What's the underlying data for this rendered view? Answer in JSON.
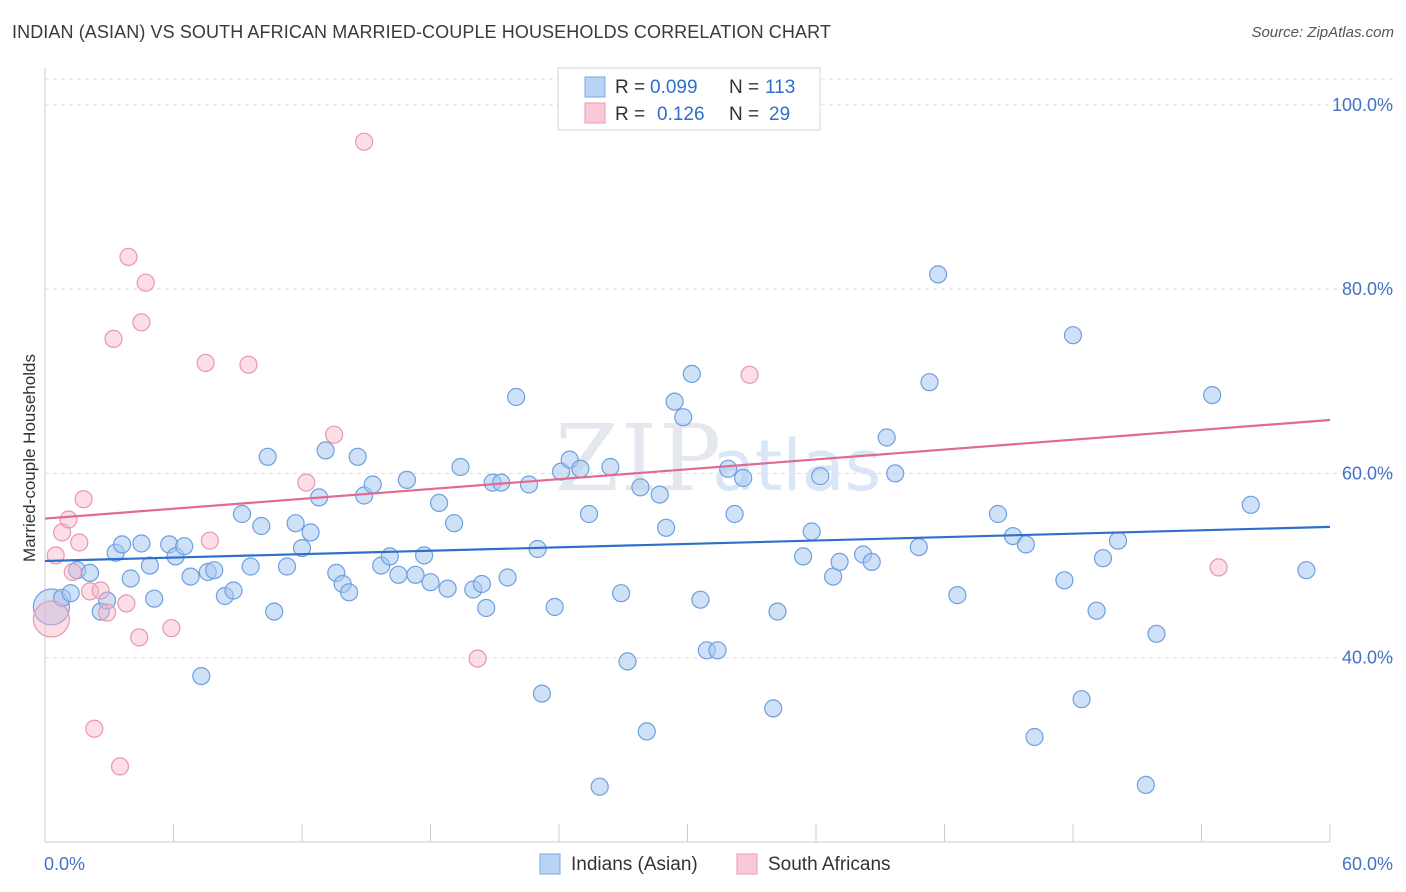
{
  "title": "INDIAN (ASIAN) VS SOUTH AFRICAN MARRIED-COUPLE HOUSEHOLDS CORRELATION CHART",
  "source": "Source: ZipAtlas.com",
  "watermark": {
    "zip": "ZIP",
    "atlas": "atlas"
  },
  "chart_data": {
    "type": "scatter",
    "ylabel": "Married-couple Households",
    "xlim": [
      0,
      60
    ],
    "ylim": [
      20,
      104
    ],
    "x_tick_labels": {
      "min": "0.0%",
      "max": "60.0%"
    },
    "y_ticks": [
      {
        "value": 40,
        "label": "40.0%"
      },
      {
        "value": 60,
        "label": "60.0%"
      },
      {
        "value": 80,
        "label": "80.0%"
      },
      {
        "value": 100,
        "label": "100.0%"
      }
    ],
    "legend": {
      "placement": "top-center",
      "entries": [
        {
          "r_label": "R =",
          "r_value": "0.099",
          "n_label": "N =",
          "n_value": "113"
        },
        {
          "r_label": "R =",
          "r_value": "0.126",
          "n_label": "N =",
          "n_value": "29"
        }
      ]
    },
    "series": [
      {
        "name": "Indians (Asian)",
        "color": "#a8c8f0",
        "line_color": "#2f6fcc",
        "trend": [
          [
            0,
            50.5
          ],
          [
            60,
            54.2
          ]
        ],
        "points": [
          [
            0.3,
            45.5
          ],
          [
            0.8,
            46.5
          ],
          [
            1.2,
            47.0
          ],
          [
            1.5,
            49.5
          ],
          [
            2.1,
            49.2
          ],
          [
            2.6,
            45.0
          ],
          [
            2.9,
            46.2
          ],
          [
            3.3,
            51.4
          ],
          [
            3.6,
            52.3
          ],
          [
            4.0,
            48.6
          ],
          [
            4.5,
            52.4
          ],
          [
            4.9,
            50.0
          ],
          [
            5.1,
            46.4
          ],
          [
            5.8,
            52.3
          ],
          [
            6.1,
            51.0
          ],
          [
            6.5,
            52.1
          ],
          [
            6.8,
            48.8
          ],
          [
            7.3,
            38.0
          ],
          [
            7.6,
            49.3
          ],
          [
            7.9,
            49.5
          ],
          [
            8.4,
            46.7
          ],
          [
            8.8,
            47.3
          ],
          [
            9.2,
            55.6
          ],
          [
            9.6,
            49.9
          ],
          [
            10.1,
            54.3
          ],
          [
            10.4,
            61.8
          ],
          [
            10.7,
            45.0
          ],
          [
            11.3,
            49.9
          ],
          [
            11.7,
            54.6
          ],
          [
            12.0,
            51.9
          ],
          [
            12.4,
            53.6
          ],
          [
            12.8,
            57.4
          ],
          [
            13.1,
            62.5
          ],
          [
            13.6,
            49.2
          ],
          [
            13.9,
            48.0
          ],
          [
            14.2,
            47.1
          ],
          [
            14.6,
            61.8
          ],
          [
            14.9,
            57.6
          ],
          [
            15.3,
            58.8
          ],
          [
            15.7,
            50.0
          ],
          [
            16.1,
            51.0
          ],
          [
            16.5,
            49.0
          ],
          [
            16.9,
            59.3
          ],
          [
            17.3,
            49.0
          ],
          [
            17.7,
            51.1
          ],
          [
            18.0,
            48.2
          ],
          [
            18.4,
            56.8
          ],
          [
            18.8,
            47.5
          ],
          [
            19.1,
            54.6
          ],
          [
            19.4,
            60.7
          ],
          [
            20.0,
            47.4
          ],
          [
            20.4,
            48.0
          ],
          [
            20.6,
            45.4
          ],
          [
            20.9,
            59.0
          ],
          [
            21.3,
            59.0
          ],
          [
            21.6,
            48.7
          ],
          [
            22.0,
            68.3
          ],
          [
            22.6,
            58.8
          ],
          [
            23.0,
            51.8
          ],
          [
            23.2,
            36.1
          ],
          [
            23.8,
            45.5
          ],
          [
            24.1,
            60.2
          ],
          [
            24.5,
            61.5
          ],
          [
            25.0,
            60.5
          ],
          [
            25.4,
            55.6
          ],
          [
            25.9,
            26.0
          ],
          [
            26.4,
            60.7
          ],
          [
            26.9,
            47.0
          ],
          [
            27.2,
            39.6
          ],
          [
            27.8,
            58.5
          ],
          [
            28.1,
            32.0
          ],
          [
            28.7,
            57.7
          ],
          [
            29.0,
            54.1
          ],
          [
            29.4,
            67.8
          ],
          [
            29.8,
            66.1
          ],
          [
            30.2,
            70.8
          ],
          [
            30.6,
            46.3
          ],
          [
            30.9,
            40.8
          ],
          [
            31.4,
            40.8
          ],
          [
            31.9,
            60.5
          ],
          [
            32.2,
            55.6
          ],
          [
            32.6,
            59.5
          ],
          [
            34.0,
            34.5
          ],
          [
            34.2,
            45.0
          ],
          [
            35.4,
            51.0
          ],
          [
            35.8,
            53.7
          ],
          [
            36.2,
            59.7
          ],
          [
            36.8,
            48.8
          ],
          [
            37.1,
            50.4
          ],
          [
            38.2,
            51.2
          ],
          [
            38.6,
            50.4
          ],
          [
            39.3,
            63.9
          ],
          [
            39.7,
            60.0
          ],
          [
            40.8,
            52.0
          ],
          [
            41.3,
            69.9
          ],
          [
            41.7,
            81.6
          ],
          [
            42.6,
            46.8
          ],
          [
            44.5,
            55.6
          ],
          [
            45.2,
            53.2
          ],
          [
            45.8,
            52.3
          ],
          [
            46.2,
            31.4
          ],
          [
            47.6,
            48.4
          ],
          [
            48.0,
            75.0
          ],
          [
            48.4,
            35.5
          ],
          [
            49.1,
            45.1
          ],
          [
            49.4,
            50.8
          ],
          [
            50.1,
            52.7
          ],
          [
            51.4,
            26.2
          ],
          [
            51.9,
            42.6
          ],
          [
            54.5,
            68.5
          ],
          [
            56.3,
            56.6
          ],
          [
            58.9,
            49.5
          ]
        ]
      },
      {
        "name": "South Africans",
        "color": "#f6b6c8",
        "line_color": "#e26a90",
        "trend": [
          [
            0,
            55.1
          ],
          [
            60,
            65.8
          ]
        ],
        "points": [
          [
            0.3,
            44.2
          ],
          [
            0.5,
            51.1
          ],
          [
            0.8,
            53.6
          ],
          [
            1.1,
            55.0
          ],
          [
            1.3,
            49.3
          ],
          [
            1.6,
            52.5
          ],
          [
            1.8,
            57.2
          ],
          [
            2.1,
            47.2
          ],
          [
            2.3,
            32.3
          ],
          [
            2.6,
            47.3
          ],
          [
            2.9,
            44.9
          ],
          [
            3.2,
            74.6
          ],
          [
            3.5,
            28.2
          ],
          [
            3.8,
            45.9
          ],
          [
            3.9,
            83.5
          ],
          [
            4.4,
            42.2
          ],
          [
            4.5,
            76.4
          ],
          [
            4.7,
            80.7
          ],
          [
            5.9,
            43.2
          ],
          [
            7.5,
            72.0
          ],
          [
            7.7,
            52.7
          ],
          [
            9.5,
            71.8
          ],
          [
            12.2,
            59.0
          ],
          [
            13.5,
            64.2
          ],
          [
            14.9,
            96.0
          ],
          [
            20.2,
            39.9
          ],
          [
            32.9,
            70.7
          ],
          [
            54.8,
            49.8
          ]
        ]
      }
    ]
  }
}
